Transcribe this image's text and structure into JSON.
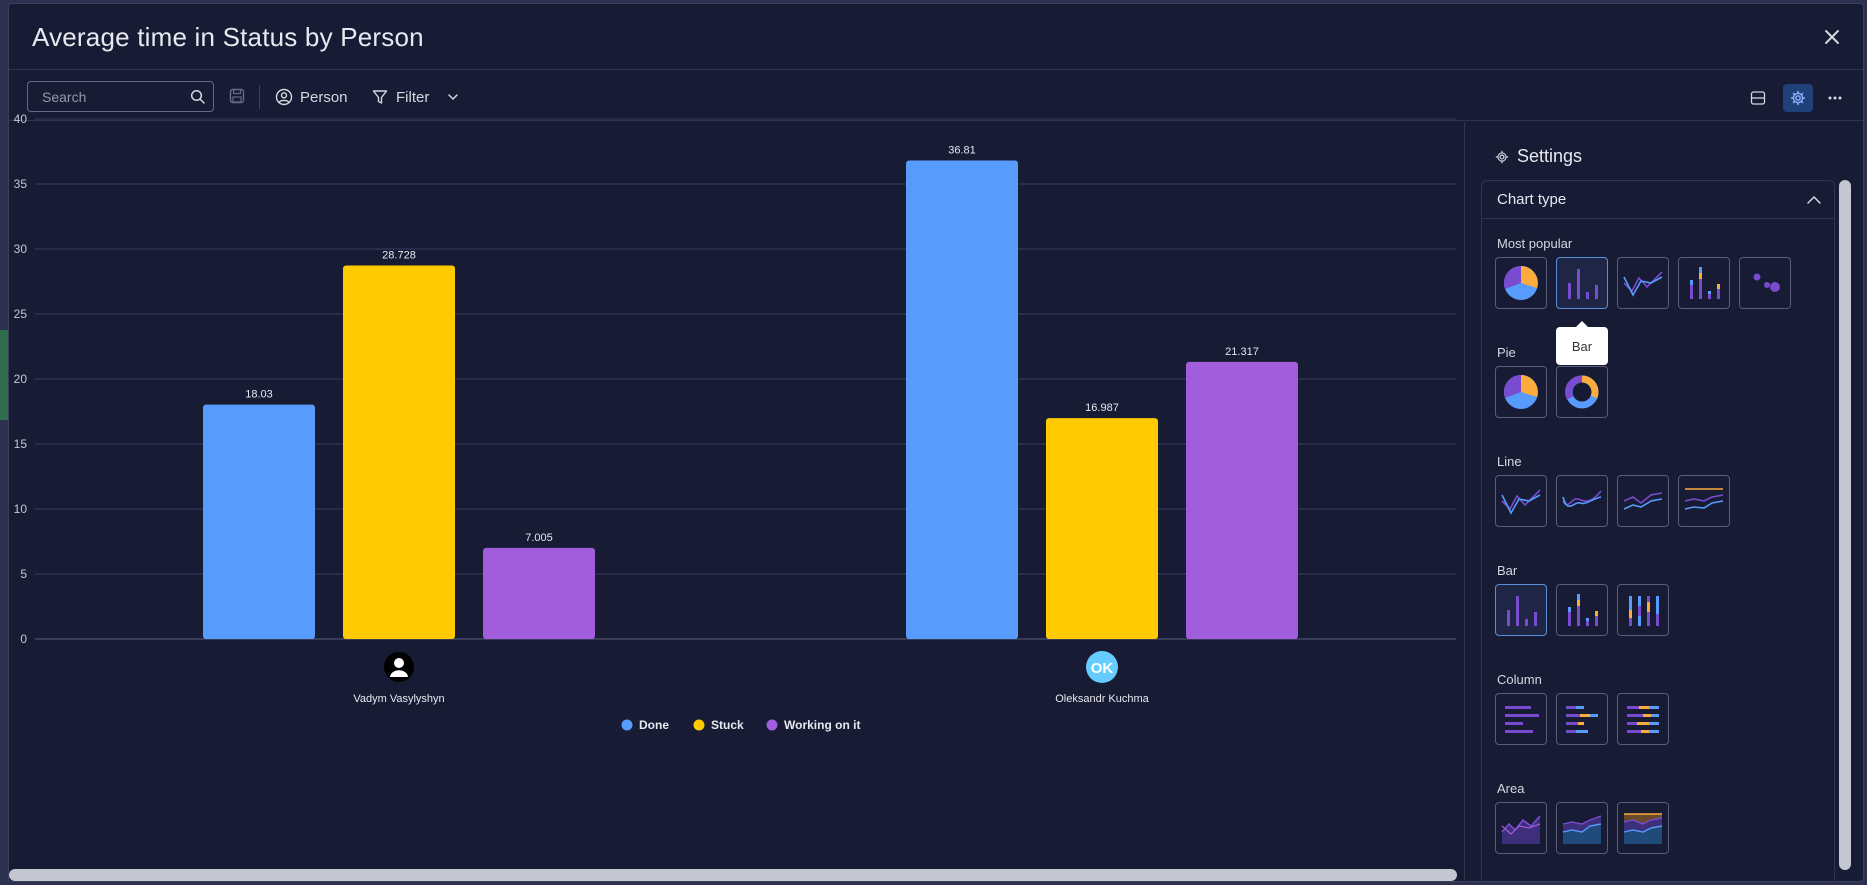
{
  "title": "Average time in Status by Person",
  "toolbar": {
    "search_placeholder": "Search",
    "person_label": "Person",
    "filter_label": "Filter"
  },
  "settings": {
    "title": "Settings",
    "chart_type_label": "Chart type",
    "groups": {
      "most_popular": "Most popular",
      "pie": "Pie",
      "line": "Line",
      "bar": "Bar",
      "column": "Column",
      "area": "Area"
    },
    "tooltip": "Bar"
  },
  "colors": {
    "done": "#579bfc",
    "stuck": "#ffcb00",
    "working": "#a25ddc",
    "background": "#181b34",
    "accent": "#20407a"
  },
  "chart_data": {
    "type": "bar",
    "categories": [
      "Vadym Vasylyshyn",
      "Oleksandr Kuchma"
    ],
    "avatars": [
      "person-silhouette",
      "OK"
    ],
    "series": [
      {
        "name": "Done",
        "color": "#579bfc",
        "values": [
          18.03,
          36.81
        ]
      },
      {
        "name": "Stuck",
        "color": "#ffcb00",
        "values": [
          28.728,
          16.987
        ]
      },
      {
        "name": "Working on it",
        "color": "#a25ddc",
        "values": [
          7.005,
          21.317
        ]
      }
    ],
    "data_labels": [
      [
        "18.03",
        "36.81"
      ],
      [
        "28.728",
        "16.987"
      ],
      [
        "7.005",
        "21.317"
      ]
    ],
    "yticks": [
      "0",
      "5",
      "10",
      "15",
      "20",
      "25",
      "30",
      "35",
      "40"
    ],
    "ylim": [
      0,
      40
    ],
    "grid": true,
    "legend": "bottom-center"
  }
}
